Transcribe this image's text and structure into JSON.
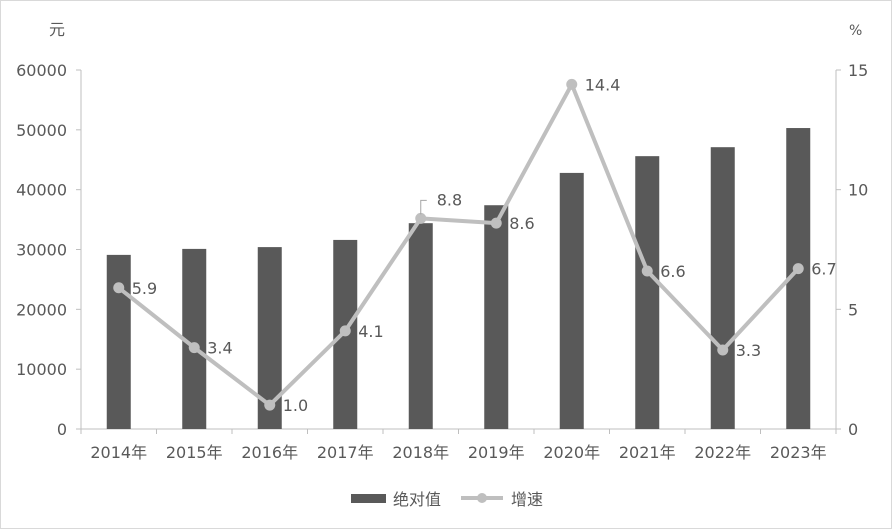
{
  "chart_data": {
    "type": "bar+line",
    "categories": [
      "2014年",
      "2015年",
      "2016年",
      "2017年",
      "2018年",
      "2019年",
      "2020年",
      "2021年",
      "2022年",
      "2023年"
    ],
    "series": [
      {
        "name": "绝对值",
        "type": "bar",
        "axis": "left",
        "color": "#595959",
        "values": [
          29100,
          30100,
          30400,
          31600,
          34400,
          37400,
          42800,
          45600,
          47100,
          50300
        ]
      },
      {
        "name": "增速",
        "type": "line",
        "axis": "right",
        "color": "#bfbfbf",
        "values": [
          5.9,
          3.4,
          1.0,
          4.1,
          8.8,
          8.6,
          14.4,
          6.6,
          3.3,
          6.7
        ],
        "labels": [
          "5.9",
          "3.4",
          "1.0",
          "4.1",
          "8.8",
          "8.6",
          "14.4",
          "6.6",
          "3.3",
          "6.7"
        ]
      }
    ],
    "left_axis": {
      "unit": "元",
      "ylim": [
        0,
        60000
      ],
      "ticks": [
        "0",
        "10000",
        "20000",
        "30000",
        "40000",
        "50000",
        "60000"
      ]
    },
    "right_axis": {
      "unit": "%",
      "ylim": [
        0,
        15
      ],
      "ticks": [
        "0",
        "5",
        "10",
        "15"
      ]
    },
    "grid": false,
    "legend_position": "bottom"
  }
}
